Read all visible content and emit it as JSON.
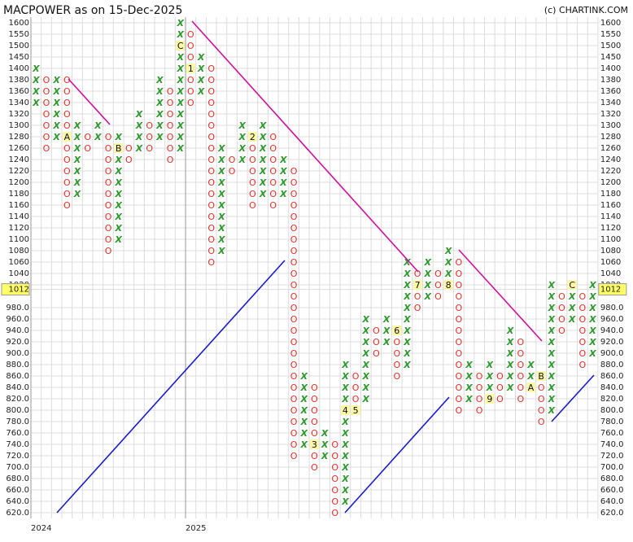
{
  "chart_data": {
    "type": "point-and-figure",
    "title": "MACPOWER as on 15-Dec-2025",
    "source": "(c) CHARTINK.COM",
    "last_price": 1012,
    "colors": {
      "X": "#2e9a2e",
      "O": "#e2312a"
    },
    "grid": true,
    "ylim": [
      620,
      1600
    ],
    "yticks": [
      1600,
      1550,
      1500,
      1450,
      1400,
      1380,
      1360,
      1340,
      1320,
      1300,
      1280,
      1260,
      1240,
      1220,
      1200,
      1180,
      1160,
      1140,
      1120,
      1100,
      1080,
      1060,
      1040,
      1020,
      {
        "value": 980,
        "label": "980.0"
      },
      {
        "value": 960,
        "label": "960.0"
      },
      {
        "value": 940,
        "label": "940.0"
      },
      {
        "value": 920,
        "label": "920.0"
      },
      {
        "value": 900,
        "label": "900.0"
      },
      {
        "value": 880,
        "label": "880.0"
      },
      {
        "value": 860,
        "label": "860.0"
      },
      {
        "value": 840,
        "label": "840.0"
      },
      {
        "value": 820,
        "label": "820.0"
      },
      {
        "value": 800,
        "label": "800.0"
      },
      {
        "value": 780,
        "label": "780.0"
      },
      {
        "value": 760,
        "label": "760.0"
      },
      {
        "value": 740,
        "label": "740.0"
      },
      {
        "value": 720,
        "label": "720.0"
      },
      {
        "value": 700,
        "label": "700.0"
      },
      {
        "value": 680,
        "label": "680.0"
      },
      {
        "value": 660,
        "label": "660.0"
      },
      {
        "value": 640,
        "label": "640.0"
      },
      {
        "value": 620,
        "label": "620.0"
      }
    ],
    "columns": [
      {
        "symbol": "X",
        "from": 1340,
        "to": 1400,
        "year": "2024"
      },
      {
        "symbol": "O",
        "from": 1260,
        "to": 1380
      },
      {
        "symbol": "X",
        "from": 1280,
        "to": 1380
      },
      {
        "symbol": "O",
        "from": 1160,
        "to": 1380,
        "markers": [
          {
            "level": 1280,
            "label": "A"
          }
        ]
      },
      {
        "symbol": "X",
        "from": 1180,
        "to": 1300
      },
      {
        "symbol": "O",
        "from": 1260,
        "to": 1280
      },
      {
        "symbol": "X",
        "from": 1280,
        "to": 1300
      },
      {
        "symbol": "O",
        "from": 1080,
        "to": 1280
      },
      {
        "symbol": "X",
        "from": 1100,
        "to": 1280,
        "markers": [
          {
            "level": 1260,
            "label": "B"
          }
        ]
      },
      {
        "symbol": "O",
        "from": 1240,
        "to": 1260
      },
      {
        "symbol": "X",
        "from": 1260,
        "to": 1320
      },
      {
        "symbol": "O",
        "from": 1260,
        "to": 1300
      },
      {
        "symbol": "X",
        "from": 1280,
        "to": 1380
      },
      {
        "symbol": "O",
        "from": 1240,
        "to": 1360
      },
      {
        "symbol": "X",
        "from": 1260,
        "to": 1600,
        "markers": [
          {
            "level": 1500,
            "label": "C"
          }
        ]
      },
      {
        "symbol": "O",
        "from": 1340,
        "to": 1550,
        "year": "2025",
        "markers": [
          {
            "level": 1400,
            "label": "1"
          }
        ]
      },
      {
        "symbol": "X",
        "from": 1360,
        "to": 1450
      },
      {
        "symbol": "O",
        "from": 1060,
        "to": 1400
      },
      {
        "symbol": "X",
        "from": 1080,
        "to": 1260
      },
      {
        "symbol": "O",
        "from": 1220,
        "to": 1240
      },
      {
        "symbol": "X",
        "from": 1240,
        "to": 1300
      },
      {
        "symbol": "O",
        "from": 1160,
        "to": 1280,
        "markers": [
          {
            "level": 1280,
            "label": "2"
          }
        ]
      },
      {
        "symbol": "X",
        "from": 1180,
        "to": 1300
      },
      {
        "symbol": "O",
        "from": 1160,
        "to": 1280
      },
      {
        "symbol": "X",
        "from": 1180,
        "to": 1240
      },
      {
        "symbol": "O",
        "from": 720,
        "to": 1220
      },
      {
        "symbol": "X",
        "from": 740,
        "to": 860
      },
      {
        "symbol": "O",
        "from": 700,
        "to": 840,
        "markers": [
          {
            "level": 740,
            "label": "3"
          }
        ]
      },
      {
        "symbol": "X",
        "from": 720,
        "to": 760
      },
      {
        "symbol": "O",
        "from": 620,
        "to": 740
      },
      {
        "symbol": "X",
        "from": 640,
        "to": 880,
        "markers": [
          {
            "level": 800,
            "label": "4"
          }
        ]
      },
      {
        "symbol": "O",
        "from": 800,
        "to": 860,
        "markers": [
          {
            "level": 800,
            "label": "5"
          }
        ]
      },
      {
        "symbol": "X",
        "from": 820,
        "to": 960
      },
      {
        "symbol": "O",
        "from": 900,
        "to": 940
      },
      {
        "symbol": "X",
        "from": 920,
        "to": 960
      },
      {
        "symbol": "O",
        "from": 860,
        "to": 940,
        "markers": [
          {
            "level": 940,
            "label": "6"
          }
        ]
      },
      {
        "symbol": "X",
        "from": 880,
        "to": 1060
      },
      {
        "symbol": "O",
        "from": 980,
        "to": 1040,
        "markers": [
          {
            "level": 1020,
            "label": "7"
          }
        ]
      },
      {
        "symbol": "X",
        "from": 1000,
        "to": 1060
      },
      {
        "symbol": "O",
        "from": 1000,
        "to": 1040
      },
      {
        "symbol": "X",
        "from": 1020,
        "to": 1080,
        "markers": [
          {
            "level": 1020,
            "label": "8"
          }
        ]
      },
      {
        "symbol": "O",
        "from": 800,
        "to": 1060
      },
      {
        "symbol": "X",
        "from": 820,
        "to": 880
      },
      {
        "symbol": "O",
        "from": 800,
        "to": 860
      },
      {
        "symbol": "X",
        "from": 820,
        "to": 880,
        "markers": [
          {
            "level": 820,
            "label": "9"
          }
        ]
      },
      {
        "symbol": "O",
        "from": 820,
        "to": 860
      },
      {
        "symbol": "X",
        "from": 840,
        "to": 940
      },
      {
        "symbol": "O",
        "from": 820,
        "to": 920
      },
      {
        "symbol": "X",
        "from": 840,
        "to": 880,
        "markers": [
          {
            "level": 840,
            "label": "A"
          }
        ]
      },
      {
        "symbol": "O",
        "from": 780,
        "to": 860,
        "markers": [
          {
            "level": 860,
            "label": "B"
          }
        ]
      },
      {
        "symbol": "X",
        "from": 800,
        "to": 1020
      },
      {
        "symbol": "O",
        "from": 940,
        "to": 1000
      },
      {
        "symbol": "X",
        "from": 960,
        "to": 1020,
        "markers": [
          {
            "level": 1020,
            "label": "C"
          }
        ]
      },
      {
        "symbol": "O",
        "from": 880,
        "to": 1000
      },
      {
        "symbol": "X",
        "from": 900,
        "to": 1020
      }
    ]
  }
}
